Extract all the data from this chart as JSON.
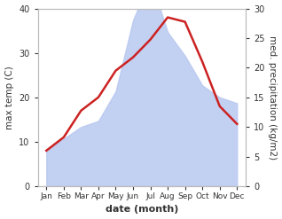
{
  "months": [
    "Jan",
    "Feb",
    "Mar",
    "Apr",
    "May",
    "Jun",
    "Jul",
    "Aug",
    "Sep",
    "Oct",
    "Nov",
    "Dec"
  ],
  "month_x": [
    0,
    1,
    2,
    3,
    4,
    5,
    6,
    7,
    8,
    9,
    10,
    11
  ],
  "temp": [
    8,
    11,
    17,
    20,
    26,
    29,
    33,
    38,
    37,
    28,
    18,
    14
  ],
  "precip": [
    6,
    8,
    10,
    11,
    16,
    28,
    35,
    26,
    22,
    17,
    15,
    14
  ],
  "temp_color": "#cc2222",
  "precip_fill_color": "#b8c8f0",
  "temp_ylim": [
    0,
    40
  ],
  "precip_ylim": [
    0,
    30
  ],
  "temp_yticks": [
    0,
    10,
    20,
    30,
    40
  ],
  "precip_yticks": [
    0,
    5,
    10,
    15,
    20,
    25,
    30
  ],
  "xlabel": "date (month)",
  "ylabel_left": "max temp (C)",
  "ylabel_right": "med. precipitation (kg/m2)",
  "bg_color": "#ffffff",
  "linewidth": 1.8,
  "figsize": [
    3.18,
    2.47
  ],
  "dpi": 100
}
